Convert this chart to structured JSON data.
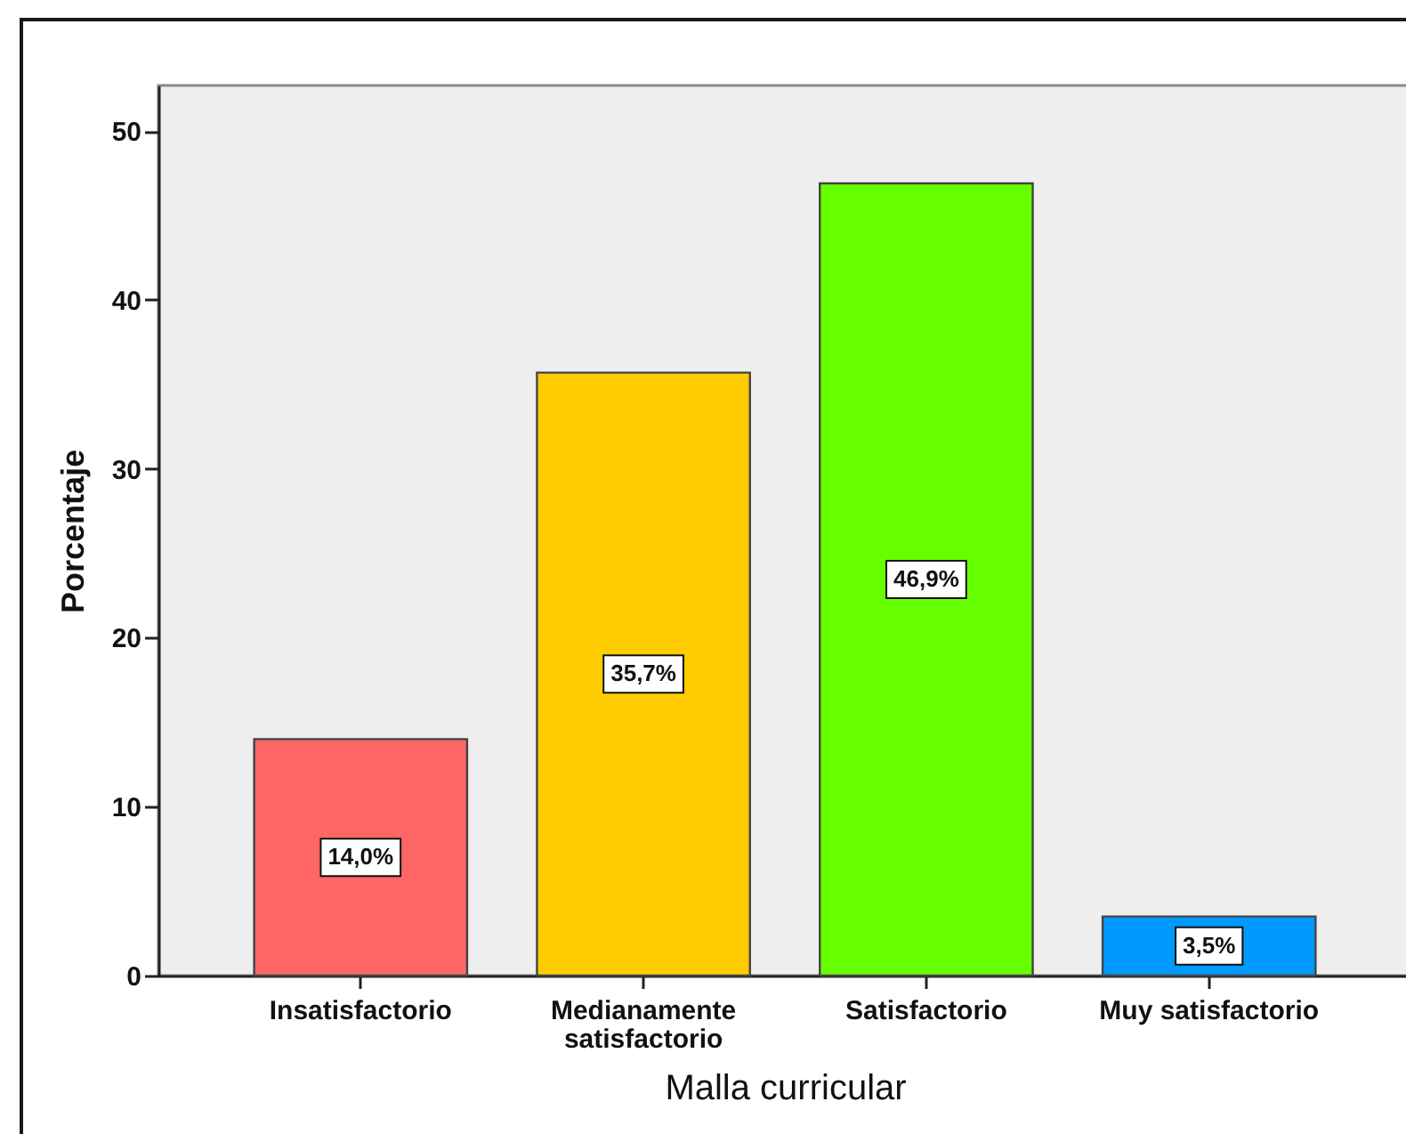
{
  "chart_data": {
    "type": "bar",
    "xlabel": "Malla curricular",
    "ylabel": "Porcentaje",
    "categories": [
      "Insatisfactorio",
      "Medianamente satisfactorio",
      "Satisfactorio",
      "Muy satisfactorio"
    ],
    "values": [
      14.0,
      35.7,
      46.9,
      3.5
    ],
    "colors": [
      "#ff6666",
      "#ffcc00",
      "#66ff00",
      "#0099ff"
    ],
    "value_labels": [
      "14,0%",
      "35,7%",
      "46,9%",
      "3,5%"
    ],
    "ylim": [
      0,
      52.7
    ],
    "yticks": [
      0,
      10,
      20,
      30,
      40,
      50
    ]
  }
}
